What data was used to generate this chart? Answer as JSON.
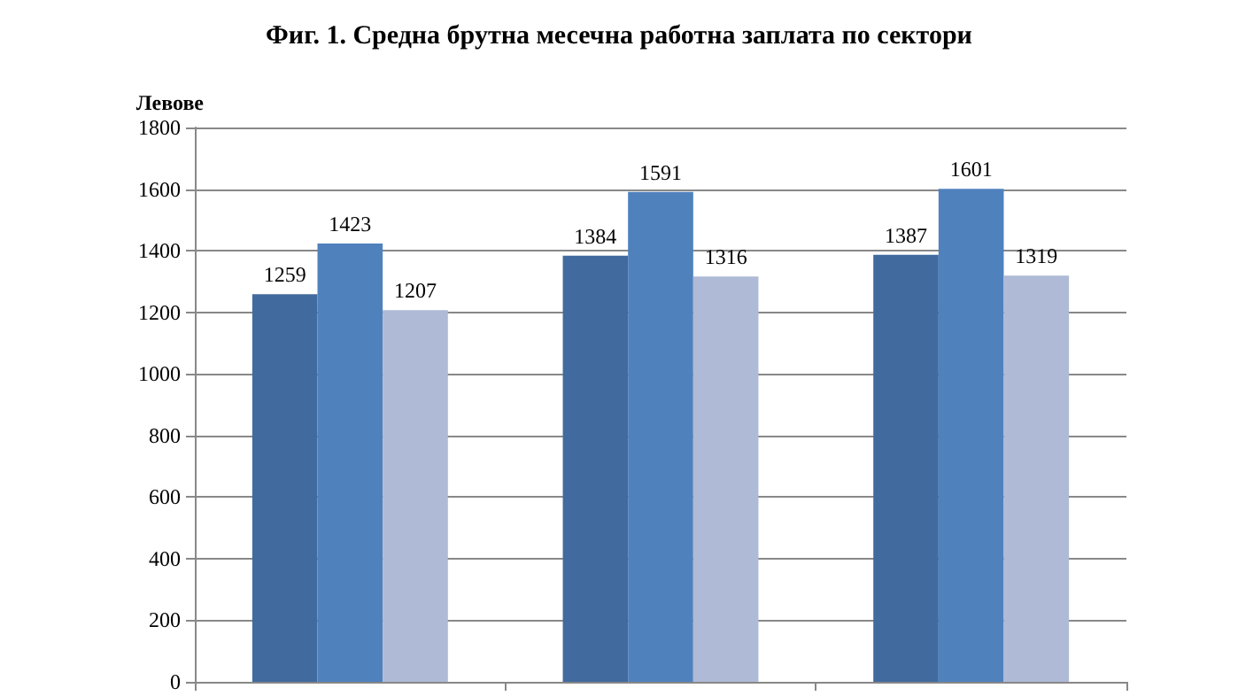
{
  "chart_data": {
    "type": "bar",
    "title": "Фиг. 1. Средна брутна месечна работна заплата по сектори",
    "ylabel": "Левове",
    "categories": [
      null,
      null,
      null
    ],
    "series": [
      {
        "color": "#416b9e",
        "values": [
          1259,
          1384,
          1387
        ]
      },
      {
        "color": "#4f81bd",
        "values": [
          1423,
          1591,
          1601
        ]
      },
      {
        "color": "#aebad6",
        "values": [
          1207,
          1316,
          1319
        ]
      }
    ],
    "ylim": [
      0,
      1800
    ],
    "yticks": [
      0,
      200,
      400,
      600,
      800,
      1000,
      1200,
      1400,
      1600,
      1800
    ],
    "grid": "y",
    "data_labels": true
  }
}
